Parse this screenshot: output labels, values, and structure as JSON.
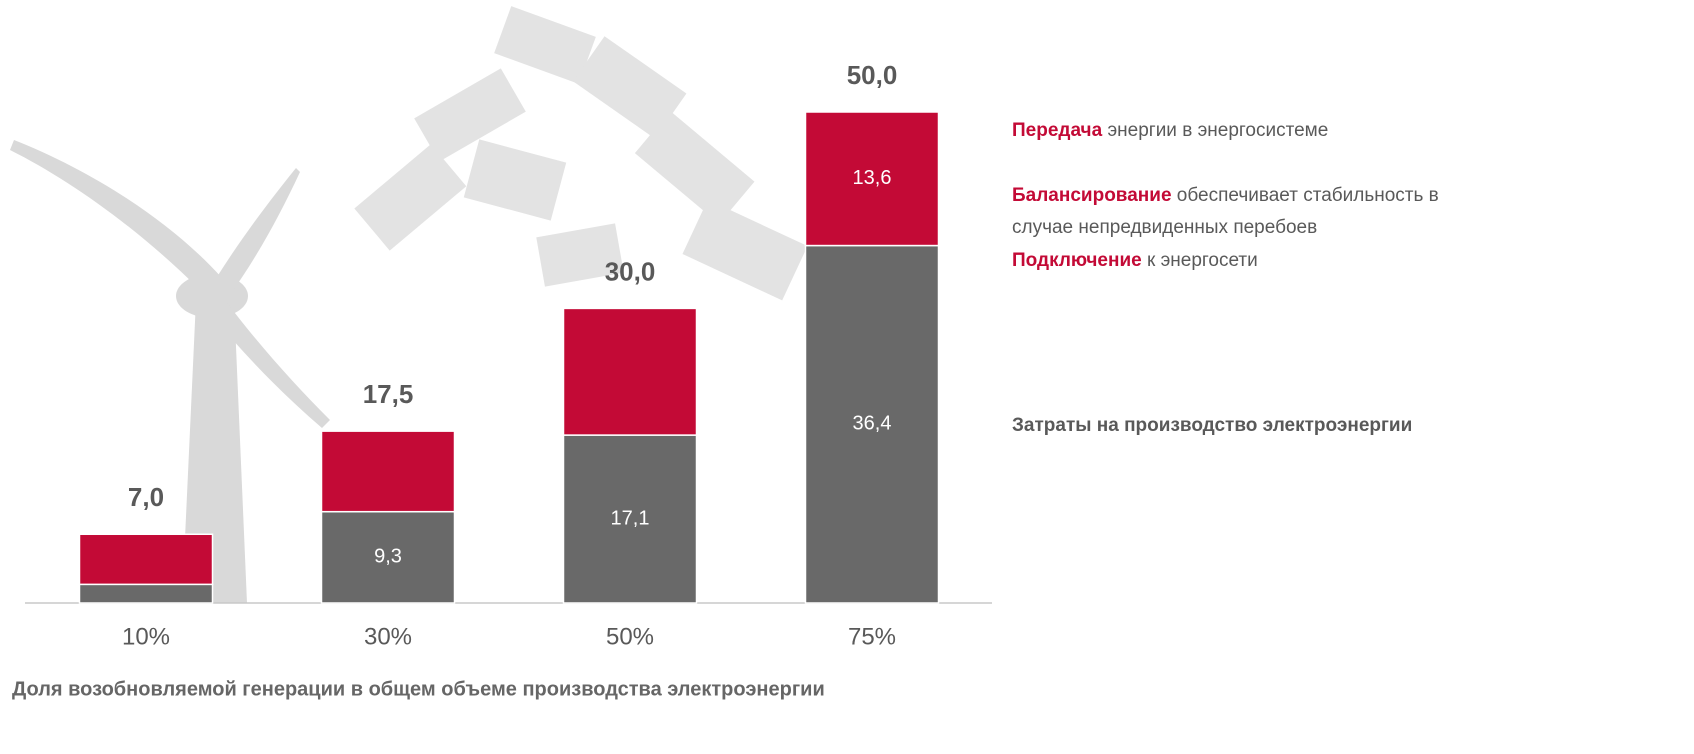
{
  "chart_data": {
    "type": "stacked-bar",
    "categories": [
      "10%",
      "30%",
      "50%",
      "75%"
    ],
    "series": [
      {
        "name": "Затраты на производство электроэнергии",
        "color": "#696969",
        "values": [
          1.9,
          9.3,
          17.1,
          36.4
        ],
        "value_labels": [
          null,
          "9,3",
          "17,1",
          "36,4"
        ]
      },
      {
        "color": "#c30a36",
        "values": [
          5.1,
          8.2,
          12.9,
          13.6
        ],
        "value_labels": [
          null,
          null,
          null,
          "13,6"
        ],
        "legend_items": [
          {
            "bold": "Передача",
            "text": "энергии в энергосистеме"
          },
          {
            "bold": "Балансирование",
            "text": "обеспечивает стабильность в случае непредвиденных перебоев"
          },
          {
            "bold": "Подключение",
            "text": "к энергосети"
          }
        ]
      }
    ],
    "totals": {
      "values": [
        7.0,
        17.5,
        30.0,
        50.0
      ],
      "value_labels": [
        "7,0",
        "17,5",
        "30,0",
        "50,0"
      ]
    },
    "xlabel": "Доля возобновляемой генерации в общем объеме производства электроэнергии",
    "ylim": [
      0,
      50
    ]
  }
}
